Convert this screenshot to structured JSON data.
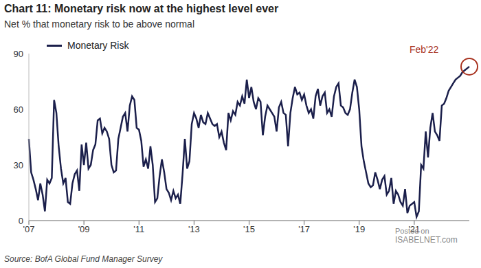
{
  "chart_data": {
    "type": "line",
    "title": "Chart 11: Monetary risk now at the highest level ever",
    "subtitle": "Net % that monetary risk to be above normal",
    "source": "Source: BofA Global Fund Manager Survey",
    "annotations": [
      "Feb'22"
    ],
    "watermark": [
      "Posted on",
      "ISABELNET.com"
    ],
    "legend": "top-left",
    "grid": false,
    "categories": [
      "'07",
      null,
      null,
      null,
      null,
      null,
      null,
      null,
      null,
      null,
      null,
      null,
      null,
      null,
      null,
      null,
      null,
      null,
      null,
      null,
      null,
      null,
      null,
      null,
      "'09",
      null,
      null,
      null,
      null,
      null,
      null,
      null,
      null,
      null,
      null,
      null,
      null,
      null,
      null,
      null,
      null,
      null,
      null,
      null,
      null,
      null,
      null,
      null,
      "'11",
      null,
      null,
      null,
      null,
      null,
      null,
      null,
      null,
      null,
      null,
      null,
      null,
      null,
      null,
      null,
      null,
      null,
      null,
      null,
      null,
      null,
      null,
      null,
      "'13",
      null,
      null,
      null,
      null,
      null,
      null,
      null,
      null,
      null,
      null,
      null,
      null,
      null,
      null,
      null,
      null,
      null,
      null,
      null,
      null,
      null,
      null,
      null,
      "'15",
      null,
      null,
      null,
      null,
      null,
      null,
      null,
      null,
      null,
      null,
      null,
      null,
      null,
      null,
      null,
      null,
      null,
      null,
      null,
      null,
      null,
      null,
      null,
      "'17",
      null,
      null,
      null,
      null,
      null,
      null,
      null,
      null,
      null,
      null,
      null,
      null,
      null,
      null,
      null,
      null,
      null,
      null,
      null,
      null,
      null,
      null,
      null,
      "'19",
      null,
      null,
      null,
      null,
      null,
      null,
      null,
      null,
      null,
      null,
      null,
      null,
      null,
      null,
      null,
      null,
      null,
      null,
      null,
      null,
      null,
      null,
      null,
      "'21",
      null,
      null,
      null,
      null,
      null,
      null,
      null,
      null,
      null,
      null,
      null,
      null,
      null,
      null,
      null,
      null,
      null,
      null,
      null,
      null,
      null,
      null,
      null,
      null
    ],
    "series": [
      {
        "name": "Monetary Risk",
        "color": "#1b1f4b",
        "values": [
          44,
          26,
          22,
          17,
          11,
          20,
          14,
          5,
          22,
          20,
          23,
          65,
          58,
          40,
          28,
          20,
          23,
          10,
          9,
          20,
          25,
          27,
          16,
          41,
          30,
          42,
          28,
          30,
          38,
          41,
          54,
          55,
          47,
          50,
          48,
          44,
          30,
          26,
          27,
          44,
          50,
          56,
          58,
          48,
          62,
          67,
          65,
          50,
          49,
          43,
          29,
          33,
          28,
          40,
          30,
          10,
          12,
          24,
          33,
          26,
          17,
          15,
          11,
          16,
          12,
          14,
          9,
          25,
          44,
          28,
          32,
          52,
          58,
          55,
          50,
          57,
          53,
          52,
          58,
          55,
          52,
          51,
          52,
          45,
          48,
          42,
          38,
          58,
          54,
          59,
          57,
          64,
          62,
          67,
          63,
          76,
          66,
          72,
          64,
          60,
          66,
          64,
          46,
          56,
          62,
          60,
          58,
          56,
          48,
          61,
          64,
          58,
          57,
          40,
          58,
          66,
          72,
          68,
          69,
          65,
          68,
          62,
          58,
          60,
          55,
          67,
          71,
          62,
          67,
          69,
          58,
          60,
          56,
          67,
          72,
          74,
          62,
          61,
          58,
          57,
          60,
          69,
          76,
          72,
          60,
          40,
          32,
          26,
          20,
          18,
          19,
          26,
          22,
          17,
          22,
          24,
          14,
          16,
          23,
          9,
          16,
          14,
          10,
          8,
          17,
          4,
          8,
          9,
          10,
          2,
          5,
          30,
          28,
          48,
          34,
          50,
          58,
          48,
          46,
          43,
          62,
          63,
          66,
          70,
          72,
          74,
          76,
          77,
          78,
          80,
          81,
          82,
          83
        ]
      }
    ],
    "ylim": [
      0,
      90
    ],
    "yticks": [
      0,
      30,
      60,
      90
    ]
  }
}
